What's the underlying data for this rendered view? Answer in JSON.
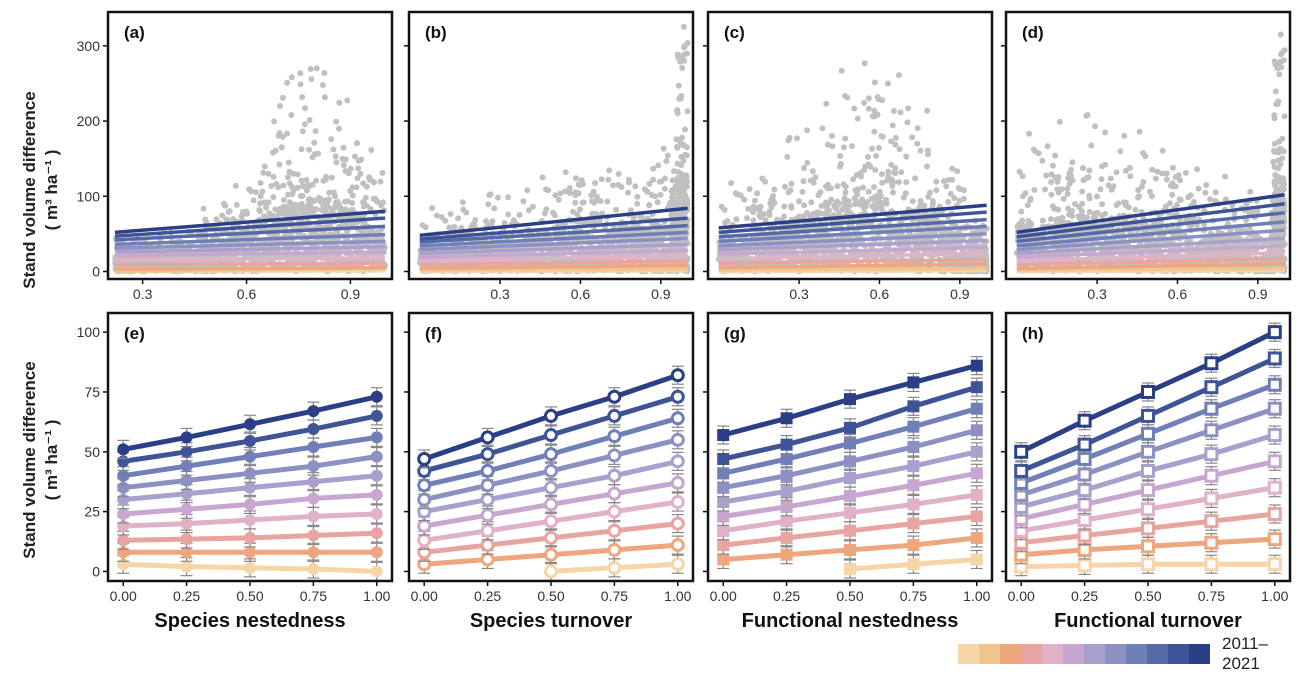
{
  "figure": {
    "ylabel_line1": "Stand volume difference",
    "ylabel_line2": "( m³ ha⁻¹ )",
    "legend_label": "2011–2021",
    "colors": [
      "#f6d5a8",
      "#f2c48e",
      "#eea67e",
      "#e8a4a0",
      "#dfb2c8",
      "#c7a7cf",
      "#a9a0cd",
      "#8d90c3",
      "#707fb8",
      "#566aa8",
      "#3f5497",
      "#2b3f86"
    ],
    "scatter_color": "#c0c0c0"
  },
  "chart_data": [
    {
      "type": "scatter",
      "panel_label": "(a)",
      "xticks": [
        "0.3",
        "0.6",
        "0.9"
      ],
      "xtick_values": [
        0.3,
        0.6,
        0.9
      ],
      "yticks": [
        "0",
        "100",
        "200",
        "300"
      ],
      "ytick_values": [
        0,
        100,
        200,
        300
      ],
      "xlim": [
        0.2,
        1.02
      ],
      "ylim": [
        -10,
        345
      ],
      "xlabel": "",
      "fit_lines": [
        [
          0,
          1
        ],
        [
          0,
          4
        ],
        [
          3,
          5
        ],
        [
          9,
          11
        ],
        [
          15,
          18
        ],
        [
          21,
          26
        ],
        [
          26,
          33
        ],
        [
          31,
          40
        ],
        [
          36,
          49
        ],
        [
          42,
          60
        ],
        [
          47,
          71
        ],
        [
          52,
          80
        ]
      ],
      "cloud_shape": "nestedness",
      "fit_x": [
        0.22,
        1.0
      ]
    },
    {
      "type": "scatter",
      "panel_label": "(b)",
      "xticks": [
        "0.3",
        "0.6",
        "0.9"
      ],
      "xtick_values": [
        0.3,
        0.6,
        0.9
      ],
      "yticks": [
        "0",
        "100",
        "200",
        "300"
      ],
      "ytick_values": [
        0,
        100,
        200,
        300
      ],
      "xlim": [
        -0.04,
        1.02
      ],
      "ylim": [
        -10,
        345
      ],
      "xlabel": "",
      "fit_lines": [
        [
          0,
          1
        ],
        [
          2,
          3
        ],
        [
          4,
          8
        ],
        [
          9,
          14
        ],
        [
          14,
          21
        ],
        [
          19,
          28
        ],
        [
          24,
          36
        ],
        [
          29,
          44
        ],
        [
          34,
          52
        ],
        [
          39,
          61
        ],
        [
          43,
          71
        ],
        [
          48,
          84
        ]
      ],
      "cloud_shape": "turnover",
      "fit_x": [
        0.0,
        1.0
      ]
    },
    {
      "type": "scatter",
      "panel_label": "(c)",
      "xticks": [
        "0.3",
        "0.6",
        "0.9"
      ],
      "xtick_values": [
        0.3,
        0.6,
        0.9
      ],
      "yticks": [
        "0",
        "100",
        "200",
        "300"
      ],
      "ytick_values": [
        0,
        100,
        200,
        300
      ],
      "xlim": [
        -0.04,
        1.02
      ],
      "ylim": [
        -10,
        345
      ],
      "xlabel": "",
      "fit_lines": [
        [
          0,
          1
        ],
        [
          2,
          4
        ],
        [
          5,
          10
        ],
        [
          11,
          16
        ],
        [
          17,
          24
        ],
        [
          23,
          32
        ],
        [
          29,
          41
        ],
        [
          34,
          50
        ],
        [
          40,
          60
        ],
        [
          46,
          69
        ],
        [
          52,
          79
        ],
        [
          58,
          88
        ]
      ],
      "cloud_shape": "fnestedness",
      "fit_x": [
        0.0,
        1.0
      ]
    },
    {
      "type": "scatter",
      "panel_label": "(d)",
      "xticks": [
        "0.3",
        "0.6",
        "0.9"
      ],
      "xtick_values": [
        0.3,
        0.6,
        0.9
      ],
      "yticks": [
        "0",
        "100",
        "200",
        "300"
      ],
      "ytick_values": [
        0,
        100,
        200,
        300
      ],
      "xlim": [
        -0.04,
        1.02
      ],
      "ylim": [
        -10,
        345
      ],
      "xlabel": "",
      "fit_lines": [
        [
          0,
          1
        ],
        [
          2,
          4
        ],
        [
          4,
          10
        ],
        [
          9,
          17
        ],
        [
          14,
          25
        ],
        [
          19,
          34
        ],
        [
          24,
          44
        ],
        [
          29,
          55
        ],
        [
          34,
          66
        ],
        [
          40,
          78
        ],
        [
          46,
          90
        ],
        [
          52,
          102
        ]
      ],
      "cloud_shape": "fturnover",
      "fit_x": [
        0.0,
        1.0
      ]
    },
    {
      "type": "line",
      "panel_label": "(e)",
      "x": [
        0,
        0.25,
        0.5,
        0.75,
        1.0
      ],
      "xticks": [
        "0.00",
        "0.25",
        "0.50",
        "0.75",
        "1.00"
      ],
      "yticks": [
        "0",
        "25",
        "50",
        "75",
        "100"
      ],
      "ytick_values": [
        0,
        25,
        50,
        75,
        100
      ],
      "xlim": [
        -0.06,
        1.06
      ],
      "ylim": [
        -4,
        108
      ],
      "xlabel": "Species nestedness",
      "marker": "circle",
      "series": [
        {
          "values": [
            3,
            2,
            1.5,
            1,
            0
          ]
        },
        {
          "values": [
            8,
            8,
            8,
            8,
            8
          ]
        },
        {
          "values": [
            13,
            13.5,
            14,
            15,
            16
          ]
        },
        {
          "values": [
            19,
            20,
            21.5,
            23,
            24
          ]
        },
        {
          "values": [
            24,
            26,
            28,
            30.5,
            32
          ]
        },
        {
          "values": [
            30,
            32.5,
            35,
            37.5,
            40
          ]
        },
        {
          "values": [
            35,
            38,
            41,
            44,
            48
          ]
        },
        {
          "values": [
            40,
            44,
            48,
            52,
            56
          ]
        },
        {
          "values": [
            46,
            50,
            54.5,
            59.5,
            65
          ]
        },
        {
          "values": [
            51,
            56,
            61.5,
            67,
            73
          ]
        }
      ]
    },
    {
      "type": "line",
      "panel_label": "(f)",
      "x": [
        0,
        0.25,
        0.5,
        0.75,
        1.0
      ],
      "xticks": [
        "0.00",
        "0.25",
        "0.50",
        "0.75",
        "1.00"
      ],
      "yticks": [
        "0",
        "25",
        "50",
        "75",
        "100"
      ],
      "ytick_values": [
        0,
        25,
        50,
        75,
        100
      ],
      "xlim": [
        -0.06,
        1.06
      ],
      "ylim": [
        -4,
        108
      ],
      "xlabel": "Species turnover",
      "marker": "ring",
      "series": [
        {
          "values": [
            null,
            null,
            0,
            1.5,
            3
          ]
        },
        {
          "values": [
            3,
            5,
            7,
            9,
            11
          ]
        },
        {
          "values": [
            8,
            11,
            14,
            17,
            20
          ]
        },
        {
          "values": [
            13,
            17,
            21,
            25,
            29
          ]
        },
        {
          "values": [
            19,
            23.5,
            28,
            32.5,
            37
          ]
        },
        {
          "values": [
            25,
            30,
            35,
            40,
            46
          ]
        },
        {
          "values": [
            30,
            36,
            42,
            48.5,
            55
          ]
        },
        {
          "values": [
            36,
            42,
            49,
            56.5,
            64
          ]
        },
        {
          "values": [
            42,
            49,
            57,
            65,
            73
          ]
        },
        {
          "values": [
            47,
            56,
            65,
            73,
            82
          ]
        }
      ]
    },
    {
      "type": "line",
      "panel_label": "(g)",
      "x": [
        0,
        0.25,
        0.5,
        0.75,
        1.0
      ],
      "xticks": [
        "0.00",
        "0.25",
        "0.50",
        "0.75",
        "1.00"
      ],
      "yticks": [
        "0",
        "25",
        "50",
        "75",
        "100"
      ],
      "ytick_values": [
        0,
        25,
        50,
        75,
        100
      ],
      "xlim": [
        -0.06,
        1.06
      ],
      "ylim": [
        -4,
        108
      ],
      "xlabel": "Functional nestedness",
      "marker": "square",
      "series": [
        {
          "values": [
            null,
            null,
            1,
            3,
            5
          ]
        },
        {
          "values": [
            5,
            7,
            9,
            11,
            14
          ]
        },
        {
          "values": [
            11,
            14,
            17,
            20,
            23
          ]
        },
        {
          "values": [
            17,
            21,
            24.5,
            28,
            32
          ]
        },
        {
          "values": [
            23,
            27,
            31.5,
            36,
            41
          ]
        },
        {
          "values": [
            29,
            33.5,
            39,
            44,
            50
          ]
        },
        {
          "values": [
            35,
            40,
            46,
            52,
            59
          ]
        },
        {
          "values": [
            41,
            47,
            53.5,
            60.5,
            68
          ]
        },
        {
          "values": [
            47,
            53,
            60,
            69,
            77
          ]
        },
        {
          "values": [
            57,
            64,
            72,
            79,
            86
          ]
        }
      ]
    },
    {
      "type": "line",
      "panel_label": "(h)",
      "x": [
        0,
        0.25,
        0.5,
        0.75,
        1.0
      ],
      "xticks": [
        "0.00",
        "0.25",
        "0.50",
        "0.75",
        "1.00"
      ],
      "yticks": [
        "0",
        "25",
        "50",
        "75",
        "100"
      ],
      "ytick_values": [
        0,
        25,
        50,
        75,
        100
      ],
      "xlim": [
        -0.06,
        1.06
      ],
      "ylim": [
        -4,
        108
      ],
      "xlabel": "Functional turnover",
      "marker": "square-open",
      "series": [
        {
          "values": [
            2,
            2.5,
            3,
            3,
            3
          ]
        },
        {
          "values": [
            7,
            9,
            10.5,
            12,
            13.5
          ]
        },
        {
          "values": [
            12,
            15,
            18,
            21,
            24
          ]
        },
        {
          "values": [
            17,
            21.5,
            26,
            30.5,
            35
          ]
        },
        {
          "values": [
            22,
            28,
            34,
            40,
            46
          ]
        },
        {
          "values": [
            27,
            34,
            42,
            49,
            57
          ]
        },
        {
          "values": [
            32,
            40.5,
            50,
            59,
            68
          ]
        },
        {
          "values": [
            37,
            47,
            57.5,
            68,
            78
          ]
        },
        {
          "values": [
            42,
            53,
            65,
            77,
            89
          ]
        },
        {
          "values": [
            50,
            63,
            75,
            87,
            100
          ]
        }
      ]
    }
  ]
}
